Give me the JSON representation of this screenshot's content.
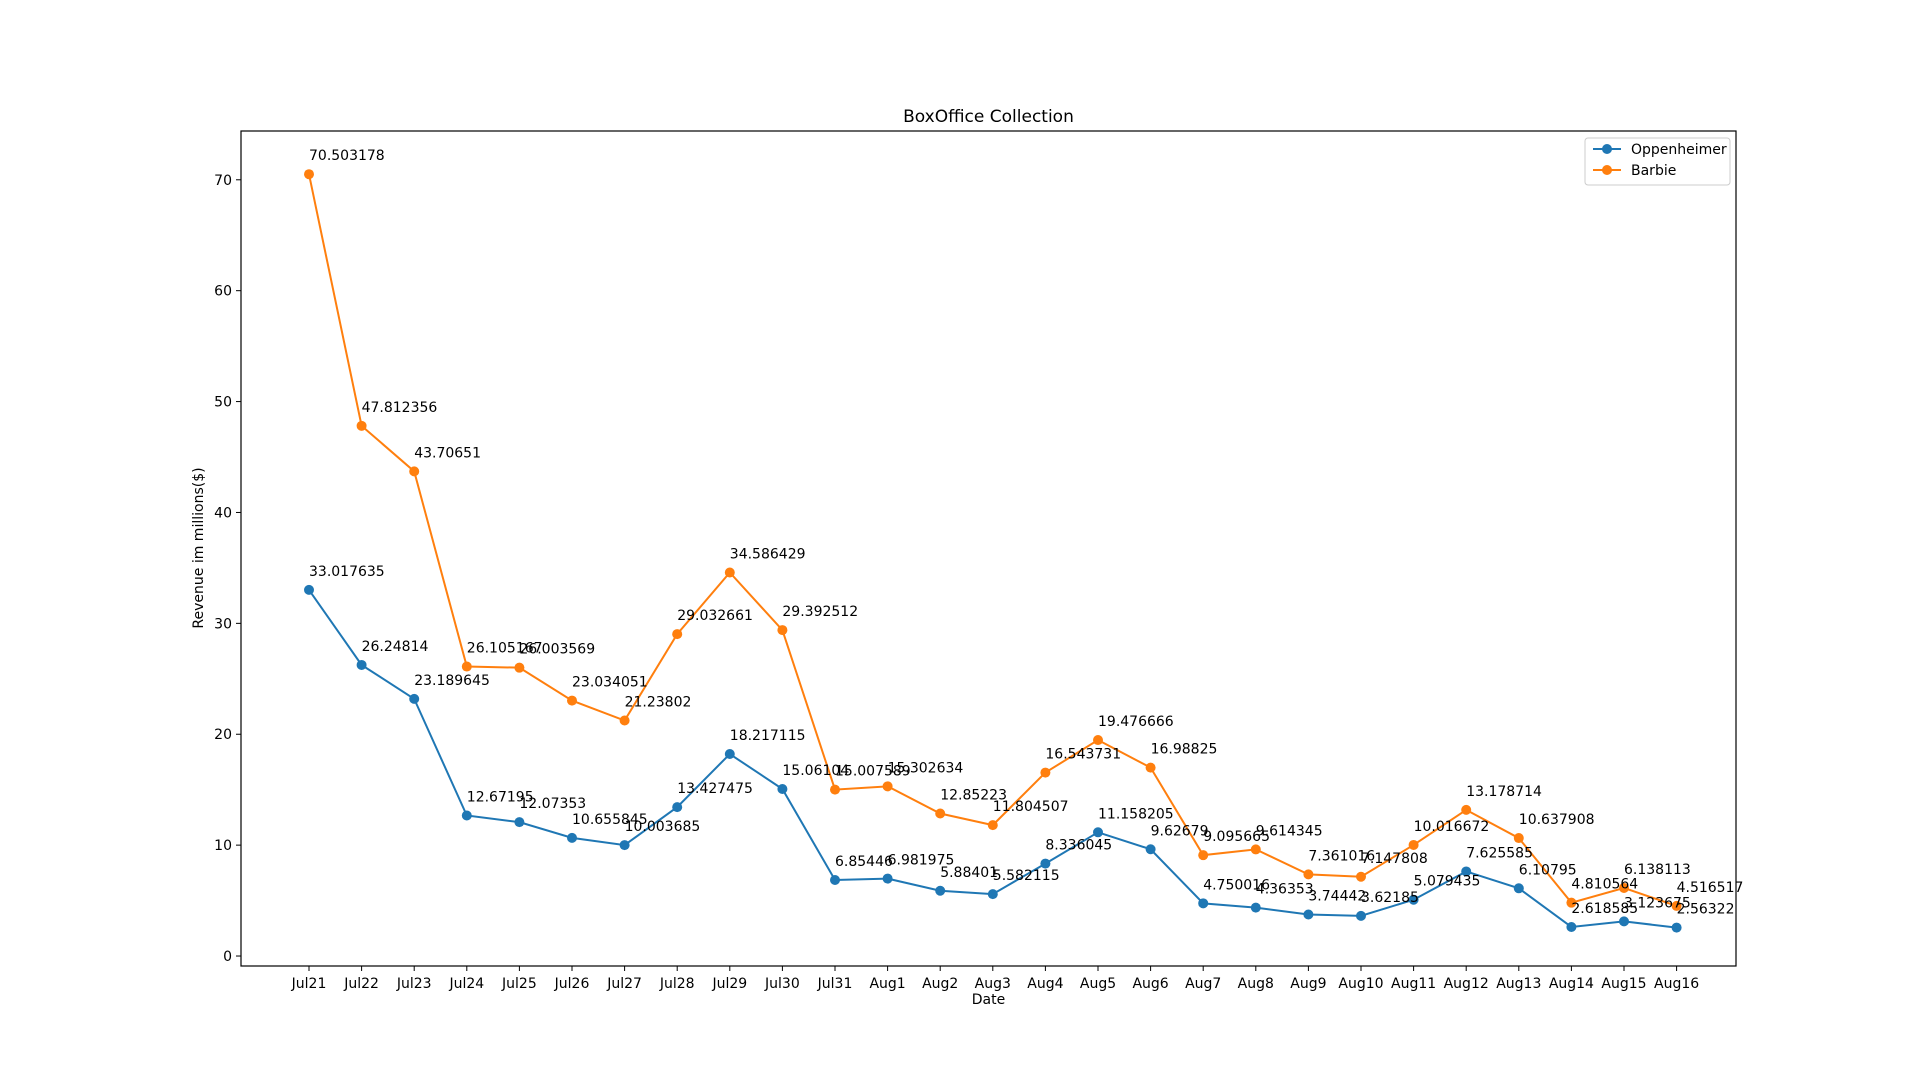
{
  "chart_data": {
    "type": "line",
    "title": "BoxOffice Collection",
    "xlabel": "Date",
    "ylabel": "Revenue im millions($)",
    "categories": [
      "Jul21",
      "Jul22",
      "Jul23",
      "Jul24",
      "Jul25",
      "Jul26",
      "Jul27",
      "Jul28",
      "Jul29",
      "Jul30",
      "Jul31",
      "Aug1",
      "Aug2",
      "Aug3",
      "Aug4",
      "Aug5",
      "Aug6",
      "Aug7",
      "Aug8",
      "Aug9",
      "Aug10",
      "Aug11",
      "Aug12",
      "Aug13",
      "Aug14",
      "Aug15",
      "Aug16"
    ],
    "yticks": [
      0,
      10,
      20,
      30,
      40,
      50,
      60,
      70
    ],
    "ylim": [
      -0.9,
      74.4
    ],
    "grid": false,
    "legend_position": "top-right",
    "series": [
      {
        "name": "Oppenheimer",
        "color": "#1f77b4",
        "values": [
          33.017635,
          26.24814,
          23.189645,
          12.67195,
          12.07353,
          10.655845,
          10.003685,
          13.427475,
          18.217115,
          15.06104,
          6.85446,
          6.981975,
          5.88401,
          5.582115,
          8.336045,
          11.158205,
          9.62679,
          4.750016,
          4.36353,
          3.74442,
          3.62185,
          5.079435,
          7.625585,
          6.10795,
          2.618585,
          3.123675,
          2.56322
        ],
        "labels": [
          "33.017635",
          "26.24814",
          "23.189645",
          "12.67195",
          "12.07353",
          "10.655845",
          "10.003685",
          "13.427475",
          "18.217115",
          "15.06104",
          "6.85446",
          "6.981975",
          "5.88401",
          "5.582115",
          "8.336045",
          "11.158205",
          "9.62679",
          "4.750016",
          "4.36353",
          "3.74442",
          "3.62185",
          "5.079435",
          "7.625585",
          "6.10795",
          "2.618585",
          "3.123675",
          "2.56322"
        ]
      },
      {
        "name": "Barbie",
        "color": "#ff7f0e",
        "values": [
          70.503178,
          47.812356,
          43.70651,
          26.105167,
          26.003569,
          23.034051,
          21.23802,
          29.032661,
          34.586429,
          29.392512,
          15.007589,
          15.302634,
          12.85223,
          11.804507,
          16.543731,
          19.476666,
          16.98825,
          9.095665,
          9.614345,
          7.361016,
          7.147808,
          10.016672,
          13.178714,
          10.637908,
          4.810564,
          6.138113,
          4.516517
        ],
        "labels": [
          "70.503178",
          "47.812356",
          "43.70651",
          "26.105167",
          "26.003569",
          "23.034051",
          "21.23802",
          "29.032661",
          "34.586429",
          "29.392512",
          "15.007589",
          "15.302634",
          "12.85223",
          "11.804507",
          "16.543731",
          "19.476666",
          "16.98825",
          "9.095665",
          "9.614345",
          "7.361016",
          "7.147808",
          "10.016672",
          "13.178714",
          "10.637908",
          "4.810564",
          "6.138113",
          "4.516517"
        ]
      }
    ]
  }
}
